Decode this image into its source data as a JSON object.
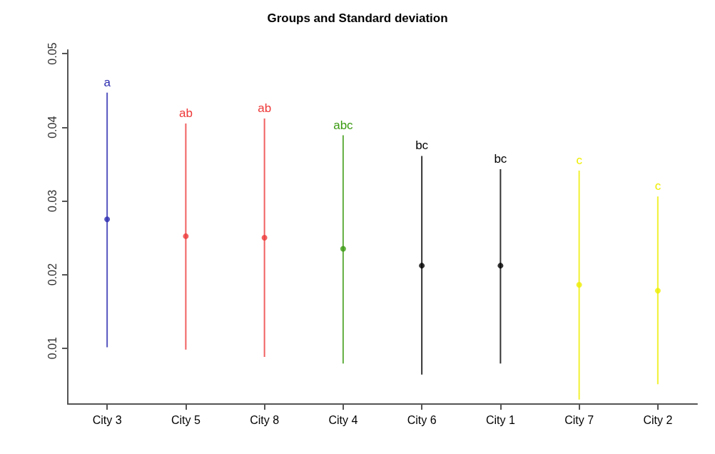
{
  "chart_data": {
    "type": "scatter",
    "title": "Groups and Standard deviation",
    "categories": [
      "City 3",
      "City 5",
      "City 8",
      "City 4",
      "City 6",
      "City 1",
      "City 7",
      "City 2"
    ],
    "values": [
      0.0275,
      0.0252,
      0.025,
      0.0235,
      0.0212,
      0.0212,
      0.0186,
      0.0178
    ],
    "errors": [
      [
        0.0101,
        0.0447
      ],
      [
        0.0098,
        0.0405
      ],
      [
        0.0088,
        0.0412
      ],
      [
        0.0079,
        0.0389
      ],
      [
        0.0064,
        0.0361
      ],
      [
        0.0079,
        0.0343
      ],
      [
        0.003,
        0.0341
      ],
      [
        0.0051,
        0.0306
      ]
    ],
    "colors": [
      "#2a2ab0",
      "#ee3838",
      "#ee3838",
      "#3a9a10",
      "#000000",
      "#000000",
      "#eeee00",
      "#eeee00"
    ],
    "ylim": [
      0.0024,
      0.0505
    ],
    "yticks": [
      0.01,
      0.02,
      0.03,
      0.04,
      0.05
    ],
    "annotations": [
      {
        "text": "a",
        "x": "City 3",
        "y": 0.0447
      },
      {
        "text": "ab",
        "x": "City 5",
        "y": 0.0405
      },
      {
        "text": "ab",
        "x": "City 8",
        "y": 0.0412
      },
      {
        "text": "abc",
        "x": "City 4",
        "y": 0.0389
      },
      {
        "text": "bc",
        "x": "City 6",
        "y": 0.0361
      },
      {
        "text": "bc",
        "x": "City 1",
        "y": 0.0343
      },
      {
        "text": "c",
        "x": "City 7",
        "y": 0.0341
      },
      {
        "text": "c",
        "x": "City 2",
        "y": 0.0306
      }
    ],
    "marker": "circle",
    "grid": false
  }
}
